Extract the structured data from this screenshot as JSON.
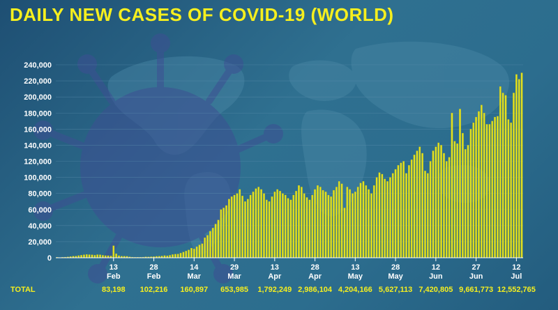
{
  "colors": {
    "bar": "#e4e21f",
    "bar_edge": "#b8b617",
    "title": "#f6ef1e",
    "axis_text": "#ffffff",
    "totals_text": "#f6ef1e",
    "gridline": "#5d8fae"
  },
  "chart_data": {
    "type": "bar",
    "title": "DAILY NEW CASES OF COVID-19 (WORLD)",
    "ylim": [
      0,
      240000
    ],
    "yticks": [
      0,
      20000,
      40000,
      60000,
      80000,
      100000,
      120000,
      140000,
      160000,
      180000,
      200000,
      220000,
      240000
    ],
    "ytick_labels": [
      "0",
      "20,000",
      "40,000",
      "60,000",
      "80,000",
      "100,000",
      "120,000",
      "140,000",
      "160,000",
      "180,000",
      "200,000",
      "220,000",
      "240,000"
    ],
    "xticks": [
      {
        "day": "13",
        "month": "Feb",
        "index": 21
      },
      {
        "day": "28",
        "month": "Feb",
        "index": 36
      },
      {
        "day": "14",
        "month": "Mar",
        "index": 51
      },
      {
        "day": "29",
        "month": "Mar",
        "index": 66
      },
      {
        "day": "13",
        "month": "Apr",
        "index": 81
      },
      {
        "day": "28",
        "month": "Apr",
        "index": 96
      },
      {
        "day": "13",
        "month": "May",
        "index": 111
      },
      {
        "day": "28",
        "month": "May",
        "index": 126
      },
      {
        "day": "12",
        "month": "Jun",
        "index": 141
      },
      {
        "day": "27",
        "month": "Jun",
        "index": 156
      },
      {
        "day": "12",
        "month": "Jul",
        "index": 171
      }
    ],
    "totals_label": "TOTAL",
    "totals": [
      "83,198",
      "102,216",
      "160,897",
      "653,985",
      "1,792,249",
      "2,986,104",
      "4,204,166",
      "5,627,113",
      "7,420,805",
      "9,661,773",
      "12,552,765"
    ],
    "x_start": "2020-01-23",
    "values": [
      600,
      200,
      700,
      800,
      1100,
      1500,
      2000,
      2100,
      2700,
      3200,
      3800,
      4200,
      3900,
      3700,
      3200,
      3900,
      3800,
      3100,
      2700,
      2600,
      2200,
      15000,
      5000,
      2600,
      2000,
      2000,
      1800,
      1200,
      800,
      600,
      700,
      700,
      800,
      1200,
      1100,
      1300,
      1400,
      1800,
      2000,
      2200,
      2700,
      2500,
      3100,
      4000,
      4500,
      4700,
      5800,
      7100,
      8400,
      9800,
      12000,
      11000,
      13800,
      16000,
      17500,
      25000,
      28000,
      33000,
      37000,
      42000,
      47000,
      60000,
      62000,
      65000,
      73000,
      76000,
      78000,
      80000,
      85000,
      77000,
      70000,
      73000,
      78000,
      82000,
      86000,
      88000,
      85000,
      80000,
      72000,
      70000,
      76000,
      82000,
      85000,
      83000,
      80000,
      78000,
      74000,
      72000,
      78000,
      83000,
      90000,
      88000,
      80000,
      75000,
      72000,
      78000,
      85000,
      90000,
      88000,
      84000,
      82000,
      78000,
      76000,
      84000,
      88000,
      95000,
      92000,
      62000,
      88000,
      85000,
      80000,
      82000,
      88000,
      93000,
      95000,
      90000,
      85000,
      80000,
      90000,
      100000,
      106000,
      104000,
      98000,
      95000,
      100000,
      105000,
      110000,
      115000,
      118000,
      120000,
      105000,
      115000,
      122000,
      128000,
      133000,
      138000,
      130000,
      108000,
      105000,
      120000,
      133000,
      138000,
      143000,
      140000,
      130000,
      120000,
      125000,
      180000,
      145000,
      142000,
      185000,
      155000,
      135000,
      140000,
      160000,
      168000,
      175000,
      182000,
      190000,
      180000,
      166000,
      166000,
      170000,
      175000,
      176000,
      213000,
      205000,
      202000,
      172000,
      168000,
      205000,
      228000,
      222000,
      230000
    ]
  }
}
